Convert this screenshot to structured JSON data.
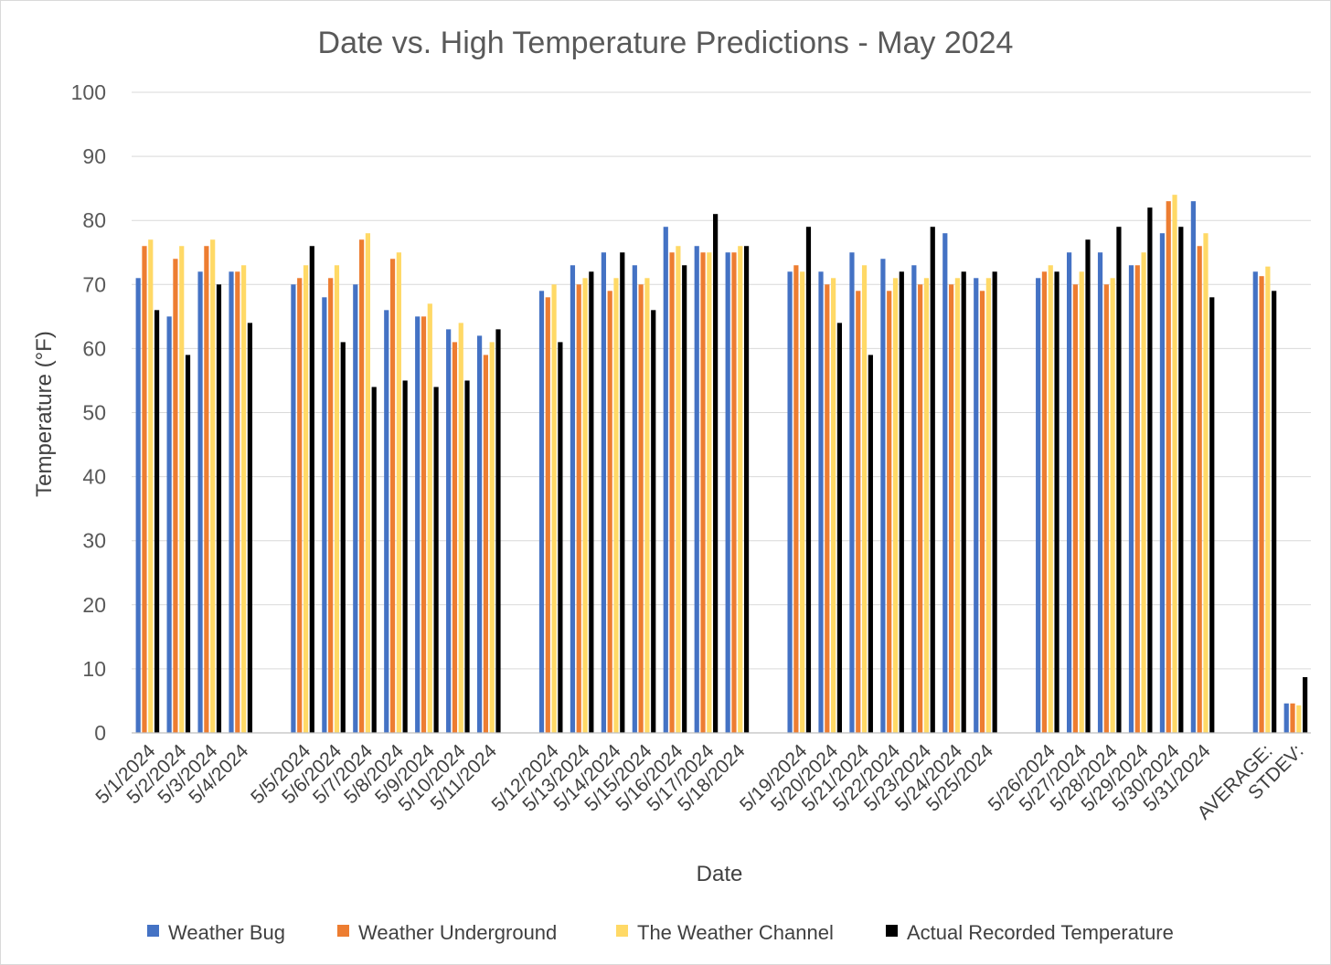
{
  "chart_data": {
    "type": "bar",
    "title": "Date vs. High Temperature Predictions - May 2024",
    "xlabel": "Date",
    "ylabel": "Temperature (°F)",
    "ylim": [
      0,
      100
    ],
    "yticks": [
      0,
      10,
      20,
      30,
      40,
      50,
      60,
      70,
      80,
      90,
      100
    ],
    "grid": true,
    "legend_position": "bottom",
    "categories": [
      "5/1/2024",
      "5/2/2024",
      "5/3/2024",
      "5/4/2024",
      "",
      "5/5/2024",
      "5/6/2024",
      "5/7/2024",
      "5/8/2024",
      "5/9/2024",
      "5/10/2024",
      "5/11/2024",
      "",
      "5/12/2024",
      "5/13/2024",
      "5/14/2024",
      "5/15/2024",
      "5/16/2024",
      "5/17/2024",
      "5/18/2024",
      "",
      "5/19/2024",
      "5/20/2024",
      "5/21/2024",
      "5/22/2024",
      "5/23/2024",
      "5/24/2024",
      "5/25/2024",
      "",
      "5/26/2024",
      "5/27/2024",
      "5/28/2024",
      "5/29/2024",
      "5/30/2024",
      "5/31/2024",
      "",
      "AVERAGE:",
      "STDEV:"
    ],
    "series": [
      {
        "name": "Weather Bug",
        "color": "#4472C4",
        "values": [
          71,
          65,
          72,
          72,
          null,
          70,
          68,
          70,
          66,
          65,
          63,
          62,
          null,
          69,
          73,
          75,
          73,
          79,
          76,
          75,
          null,
          72,
          72,
          75,
          74,
          73,
          78,
          71,
          null,
          71,
          75,
          75,
          73,
          78,
          83,
          null,
          72,
          4.6
        ]
      },
      {
        "name": "Weather Underground",
        "color": "#ED7D31",
        "values": [
          76,
          74,
          76,
          72,
          null,
          71,
          71,
          77,
          74,
          65,
          61,
          59,
          null,
          68,
          70,
          69,
          70,
          75,
          75,
          75,
          null,
          73,
          70,
          69,
          69,
          70,
          70,
          69,
          null,
          72,
          70,
          70,
          73,
          83,
          76,
          null,
          71.3,
          4.6
        ]
      },
      {
        "name": "The Weather Channel",
        "color": "#FFD966",
        "values": [
          77,
          76,
          77,
          73,
          null,
          73,
          73,
          78,
          75,
          67,
          64,
          61,
          null,
          70,
          71,
          71,
          71,
          76,
          75,
          76,
          null,
          72,
          71,
          73,
          71,
          71,
          71,
          71,
          null,
          73,
          72,
          71,
          75,
          84,
          78,
          null,
          72.8,
          4.3
        ]
      },
      {
        "name": "Actual Recorded Temperature",
        "color": "#000000",
        "values": [
          66,
          59,
          70,
          64,
          null,
          76,
          61,
          54,
          55,
          54,
          55,
          63,
          null,
          61,
          72,
          75,
          66,
          73,
          81,
          76,
          null,
          79,
          64,
          59,
          72,
          79,
          72,
          72,
          null,
          72,
          77,
          79,
          82,
          79,
          68,
          null,
          69,
          8.7
        ]
      }
    ]
  }
}
